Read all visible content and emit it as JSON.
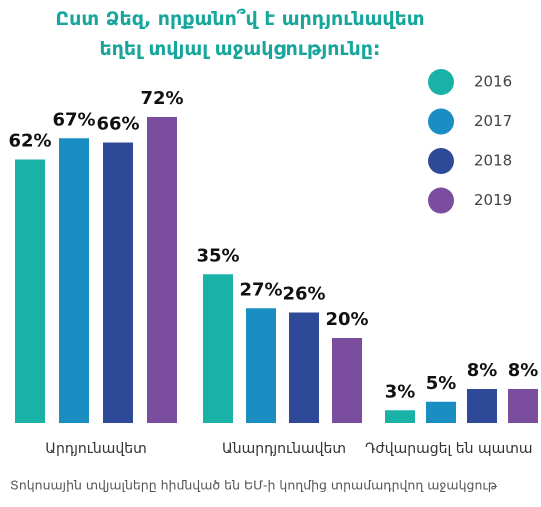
{
  "chart_data": {
    "type": "bar",
    "title": "Ըստ Ձեզ, որքանո՞վ է արդյունավետ եղել տվյալ աջակցությունը:",
    "categories": [
      "Արդյունավետ",
      "Անարդյունավետ",
      "Դժվարացել են պատա"
    ],
    "series": [
      {
        "name": "2016",
        "color": "#1ab1a7",
        "values": [
          62,
          35,
          3
        ],
        "value_labels": [
          "62%",
          "35%",
          "3%"
        ]
      },
      {
        "name": "2017",
        "color": "#1a8dc2",
        "values": [
          67,
          27,
          5
        ],
        "value_labels": [
          "67%",
          "27%",
          "5%"
        ]
      },
      {
        "name": "2018",
        "color": "#2f4999",
        "values": [
          66,
          26,
          8
        ],
        "value_labels": [
          "66%",
          "26%",
          "8%"
        ]
      },
      {
        "name": "2019",
        "color": "#7b4d9e",
        "values": [
          72,
          20,
          8
        ],
        "value_labels": [
          "72%",
          "20%",
          "8%"
        ]
      }
    ],
    "footnote": "Տոկոսային տվյալները հիմնված են ԵՄ-ի կողմից տրամադրվող աջակցութ"
  }
}
